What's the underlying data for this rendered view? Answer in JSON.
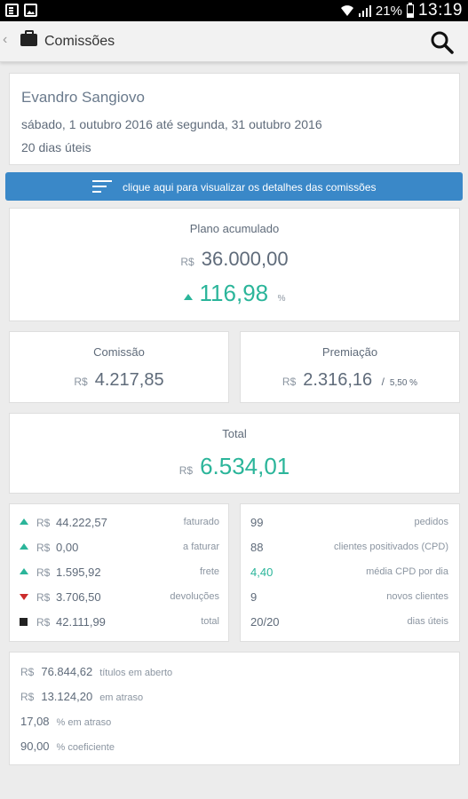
{
  "status_bar": {
    "battery": "21%",
    "time": "13:19"
  },
  "app_bar": {
    "title": "Comissões"
  },
  "header": {
    "name": "Evandro Sangiovo",
    "period": "sábado, 1 outubro 2016 até segunda, 31 outubro 2016",
    "workdays": "20 dias úteis"
  },
  "details_button": {
    "label": "clique aqui para visualizar os detalhes das comissões"
  },
  "plan": {
    "title": "Plano acumulado",
    "currency": "R$",
    "value": "36.000,00",
    "percent": "116,98",
    "percent_sign": "%"
  },
  "commission": {
    "title": "Comissão",
    "currency": "R$",
    "value": "4.217,85"
  },
  "premium": {
    "title": "Premiação",
    "currency": "R$",
    "value": "2.316,16",
    "separator": "/",
    "percent": "5,50 %"
  },
  "total": {
    "title": "Total",
    "currency": "R$",
    "value": "6.534,01"
  },
  "sales": [
    {
      "icon": "arrow-up-icon",
      "currency": "R$",
      "value": "44.222,57",
      "label": "faturado"
    },
    {
      "icon": "arrow-up-icon",
      "currency": "R$",
      "value": "0,00",
      "label": "a faturar"
    },
    {
      "icon": "arrow-up-icon",
      "currency": "R$",
      "value": "1.595,92",
      "label": "frete"
    },
    {
      "icon": "arrow-down-icon",
      "currency": "R$",
      "value": "3.706,50",
      "label": "devoluções"
    },
    {
      "icon": "square-icon",
      "currency": "R$",
      "value": "42.111,99",
      "label": "total"
    }
  ],
  "stats": [
    {
      "value": "99",
      "label": "pedidos"
    },
    {
      "value": "88",
      "label": "clientes positivados (CPD)"
    },
    {
      "value": "4,40",
      "label": "média CPD por dia"
    },
    {
      "value": "9",
      "label": "novos clientes"
    },
    {
      "value": "20/20",
      "label": "dias úteis"
    }
  ],
  "titles": {
    "open_currency": "R$",
    "open_value": "76.844,62",
    "open_label": "títulos em aberto",
    "late_currency": "R$",
    "late_value": "13.124,20",
    "late_label": "em atraso",
    "late_pct_value": "17,08",
    "late_pct_label": "% em atraso",
    "coef_value": "90,00",
    "coef_label": "% coeficiente"
  },
  "colors": {
    "accent": "#3a88c8",
    "positive": "#2bb59a",
    "negative": "#cc2c2c"
  }
}
